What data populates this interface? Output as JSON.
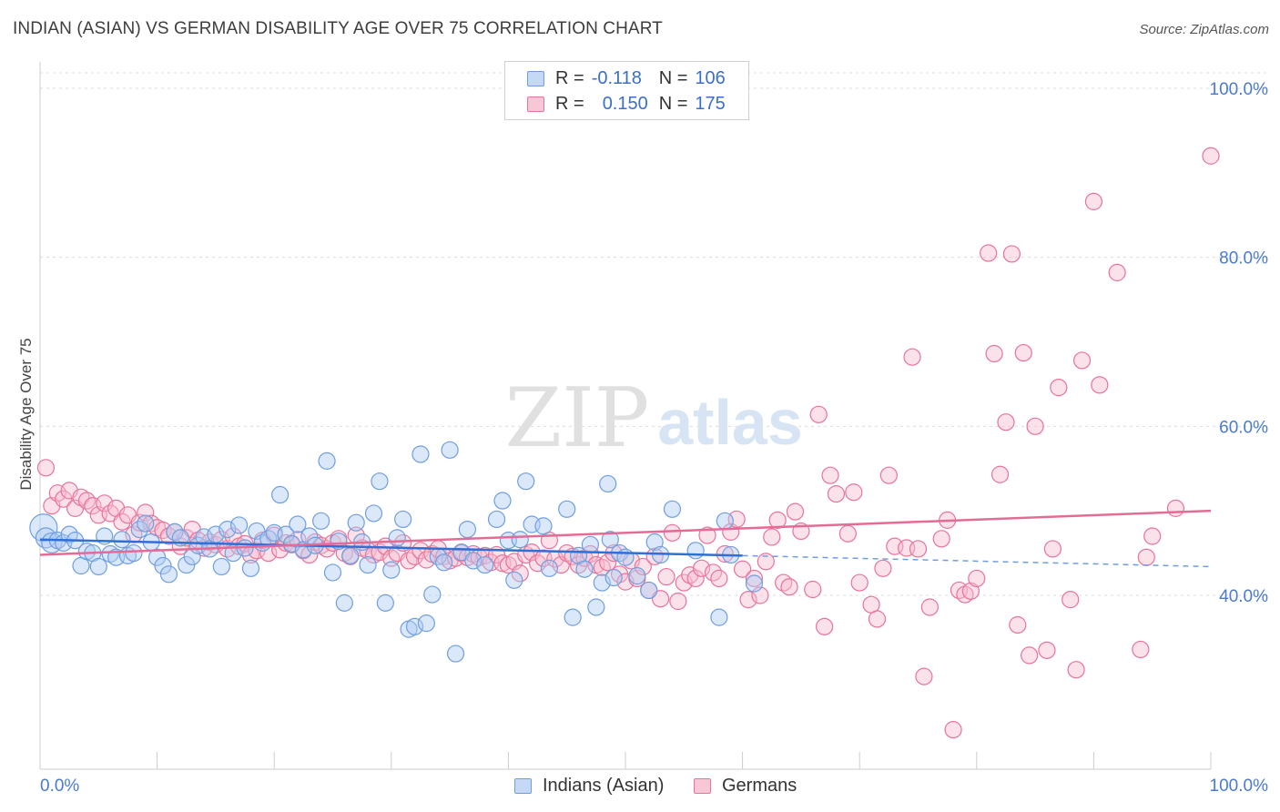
{
  "header": {
    "title": "INDIAN (ASIAN) VS GERMAN DISABILITY AGE OVER 75 CORRELATION CHART",
    "source": "Source: ZipAtlas.com"
  },
  "legend": {
    "r_label": "R =",
    "n_label": "N =",
    "series": [
      {
        "name": "Indians (Asian)",
        "r": "-0.118",
        "n": "106",
        "color": "#6f9ee0",
        "fill": "#c5d9f6"
      },
      {
        "name": "Germans",
        "r": "0.150",
        "n": "175",
        "color": "#e8739b",
        "fill": "#f8c7d6"
      }
    ]
  },
  "watermark": {
    "zip": "ZIP",
    "atlas": "atlas"
  },
  "chart_data": {
    "type": "scatter",
    "title": "INDIAN (ASIAN) VS GERMAN DISABILITY AGE OVER 75 CORRELATION CHART",
    "xlabel": "",
    "ylabel": "Disability Age Over 75",
    "xlim": [
      0,
      100
    ],
    "ylim": [
      20,
      102
    ],
    "x_tick_labels": [
      "0.0%",
      "100.0%"
    ],
    "y_tick_labels": [
      "40.0%",
      "60.0%",
      "80.0%",
      "100.0%"
    ],
    "y_ticks": [
      40,
      60,
      80,
      100
    ],
    "grid": true,
    "legend_position": "top-center",
    "series": [
      {
        "name": "Indians (Asian)",
        "color": "#6f9ee0",
        "trend": {
          "x": [
            0,
            60
          ],
          "y": [
            46.6,
            44.7
          ],
          "dashed_extension_to": [
            100,
            43.4
          ]
        },
        "points": [
          [
            0.3,
            48.0
          ],
          [
            0.5,
            46.8
          ],
          [
            1,
            46.2
          ],
          [
            1.5,
            46.5
          ],
          [
            2,
            46.2
          ],
          [
            2.5,
            47.2
          ],
          [
            3,
            46.5
          ],
          [
            3.5,
            43.5
          ],
          [
            4,
            45.2
          ],
          [
            4.5,
            45.0
          ],
          [
            5,
            43.4
          ],
          [
            5.5,
            47.0
          ],
          [
            6,
            44.9
          ],
          [
            6.5,
            44.5
          ],
          [
            7,
            46.6
          ],
          [
            7.5,
            44.7
          ],
          [
            8,
            45.0
          ],
          [
            8.5,
            47.8
          ],
          [
            9,
            48.5
          ],
          [
            9.5,
            46.3
          ],
          [
            10,
            44.5
          ],
          [
            10.5,
            43.5
          ],
          [
            11,
            42.5
          ],
          [
            11.5,
            47.5
          ],
          [
            12,
            46.8
          ],
          [
            12.5,
            43.6
          ],
          [
            13,
            44.6
          ],
          [
            13.5,
            45.9
          ],
          [
            14,
            46.9
          ],
          [
            14.5,
            45.5
          ],
          [
            15,
            47.2
          ],
          [
            15.5,
            43.4
          ],
          [
            16,
            47.8
          ],
          [
            16.5,
            45.0
          ],
          [
            17,
            48.3
          ],
          [
            17.5,
            45.6
          ],
          [
            18,
            43.2
          ],
          [
            18.5,
            47.6
          ],
          [
            19,
            46.2
          ],
          [
            19.5,
            46.7
          ],
          [
            20,
            47.4
          ],
          [
            20.5,
            51.9
          ],
          [
            21,
            47.2
          ],
          [
            21.5,
            46.1
          ],
          [
            22,
            48.4
          ],
          [
            22.5,
            45.4
          ],
          [
            23,
            47.0
          ],
          [
            23.5,
            45.9
          ],
          [
            24,
            48.8
          ],
          [
            24.5,
            55.9
          ],
          [
            25,
            42.7
          ],
          [
            25.5,
            46.4
          ],
          [
            26,
            39.1
          ],
          [
            26.5,
            44.7
          ],
          [
            27,
            48.6
          ],
          [
            27.5,
            46.3
          ],
          [
            28,
            43.6
          ],
          [
            28.5,
            49.7
          ],
          [
            29,
            53.5
          ],
          [
            29.5,
            39.1
          ],
          [
            30,
            43.0
          ],
          [
            30.5,
            46.8
          ],
          [
            31,
            49.0
          ],
          [
            31.5,
            36.0
          ],
          [
            32,
            36.3
          ],
          [
            32.5,
            56.7
          ],
          [
            33,
            36.7
          ],
          [
            33.5,
            40.1
          ],
          [
            34,
            44.6
          ],
          [
            34.5,
            43.9
          ],
          [
            35,
            57.2
          ],
          [
            35.5,
            33.1
          ],
          [
            36,
            45.1
          ],
          [
            36.5,
            47.8
          ],
          [
            37,
            44.1
          ],
          [
            38,
            43.6
          ],
          [
            39,
            49.0
          ],
          [
            39.5,
            51.2
          ],
          [
            40,
            46.5
          ],
          [
            40.5,
            41.8
          ],
          [
            41,
            46.6
          ],
          [
            41.5,
            53.5
          ],
          [
            42,
            48.4
          ],
          [
            43,
            48.2
          ],
          [
            43.5,
            43.2
          ],
          [
            45,
            50.2
          ],
          [
            45.5,
            37.4
          ],
          [
            46,
            44.7
          ],
          [
            46.5,
            43.1
          ],
          [
            47,
            46.0
          ],
          [
            47.5,
            38.6
          ],
          [
            48,
            41.5
          ],
          [
            48.5,
            53.2
          ],
          [
            48.7,
            46.6
          ],
          [
            49,
            42.1
          ],
          [
            49.5,
            45.0
          ],
          [
            50,
            44.5
          ],
          [
            51,
            42.3
          ],
          [
            52,
            40.6
          ],
          [
            52.5,
            46.3
          ],
          [
            53,
            44.8
          ],
          [
            54,
            50.2
          ],
          [
            58,
            37.4
          ],
          [
            56,
            45.3
          ],
          [
            58.5,
            48.8
          ],
          [
            59,
            44.8
          ],
          [
            61,
            41.4
          ]
        ]
      },
      {
        "name": "Germans",
        "color": "#e8739b",
        "trend": {
          "x": [
            0,
            100
          ],
          "y": [
            44.8,
            50.0
          ]
        },
        "points": [
          [
            0.5,
            55.1
          ],
          [
            1,
            50.6
          ],
          [
            1.5,
            52.1
          ],
          [
            2,
            51.4
          ],
          [
            2.5,
            52.4
          ],
          [
            3,
            50.3
          ],
          [
            3.5,
            51.6
          ],
          [
            4,
            51.2
          ],
          [
            4.5,
            50.6
          ],
          [
            5,
            49.5
          ],
          [
            5.5,
            50.9
          ],
          [
            6,
            49.7
          ],
          [
            6.5,
            50.3
          ],
          [
            7,
            48.7
          ],
          [
            7.5,
            49.5
          ],
          [
            8,
            47.2
          ],
          [
            8.5,
            48.6
          ],
          [
            9,
            49.8
          ],
          [
            9.5,
            48.5
          ],
          [
            10,
            48.0
          ],
          [
            10.5,
            47.7
          ],
          [
            11,
            47.0
          ],
          [
            11.5,
            47.5
          ],
          [
            12,
            45.8
          ],
          [
            12.5,
            46.8
          ],
          [
            13,
            47.8
          ],
          [
            13.5,
            46.5
          ],
          [
            14,
            45.6
          ],
          [
            14.5,
            46.3
          ],
          [
            15,
            46.0
          ],
          [
            15.5,
            46.6
          ],
          [
            16,
            45.5
          ],
          [
            16.5,
            47.0
          ],
          [
            17,
            45.8
          ],
          [
            17.5,
            46.1
          ],
          [
            18,
            44.8
          ],
          [
            18.5,
            45.3
          ],
          [
            19,
            46.5
          ],
          [
            19.5,
            45.0
          ],
          [
            20,
            47.1
          ],
          [
            20.5,
            45.4
          ],
          [
            21,
            46.2
          ],
          [
            21.5,
            46.0
          ],
          [
            22,
            46.6
          ],
          [
            22.5,
            45.3
          ],
          [
            23,
            44.8
          ],
          [
            23.5,
            46.3
          ],
          [
            24,
            45.9
          ],
          [
            24.5,
            45.5
          ],
          [
            25,
            46.2
          ],
          [
            25.5,
            46.7
          ],
          [
            26,
            45.0
          ],
          [
            26.5,
            44.6
          ],
          [
            27,
            47.1
          ],
          [
            27.5,
            45.6
          ],
          [
            28,
            45.3
          ],
          [
            28.5,
            44.8
          ],
          [
            29,
            45.1
          ],
          [
            29.5,
            45.8
          ],
          [
            30,
            44.4
          ],
          [
            30.5,
            45.0
          ],
          [
            31,
            46.2
          ],
          [
            31.5,
            44.1
          ],
          [
            32,
            44.6
          ],
          [
            32.5,
            45.3
          ],
          [
            33,
            44.2
          ],
          [
            33.5,
            44.9
          ],
          [
            34,
            45.5
          ],
          [
            34.5,
            44.6
          ],
          [
            35,
            44.1
          ],
          [
            35.5,
            44.4
          ],
          [
            36,
            45.0
          ],
          [
            36.5,
            44.5
          ],
          [
            37,
            44.9
          ],
          [
            37.5,
            44.5
          ],
          [
            38,
            44.7
          ],
          [
            38.5,
            43.9
          ],
          [
            39,
            44.8
          ],
          [
            39.5,
            43.8
          ],
          [
            40,
            43.6
          ],
          [
            40.5,
            44.0
          ],
          [
            41,
            42.6
          ],
          [
            41.5,
            44.8
          ],
          [
            42,
            45.1
          ],
          [
            42.5,
            43.8
          ],
          [
            43,
            44.4
          ],
          [
            43.5,
            46.5
          ],
          [
            44,
            44.3
          ],
          [
            44.5,
            43.6
          ],
          [
            45,
            45.0
          ],
          [
            45.5,
            44.6
          ],
          [
            46,
            43.6
          ],
          [
            46.5,
            44.4
          ],
          [
            47,
            44.9
          ],
          [
            47.5,
            43.6
          ],
          [
            48,
            43.3
          ],
          [
            48.5,
            43.9
          ],
          [
            49,
            45.0
          ],
          [
            49.5,
            42.5
          ],
          [
            50,
            41.6
          ],
          [
            50.5,
            44.1
          ],
          [
            51,
            42.0
          ],
          [
            51.5,
            43.4
          ],
          [
            52,
            40.6
          ],
          [
            52.5,
            44.6
          ],
          [
            53,
            39.6
          ],
          [
            53.5,
            42.2
          ],
          [
            54,
            47.4
          ],
          [
            54.5,
            39.3
          ],
          [
            55,
            41.5
          ],
          [
            55.5,
            42.4
          ],
          [
            56,
            42.0
          ],
          [
            56.5,
            43.2
          ],
          [
            57,
            47.1
          ],
          [
            57.5,
            42.7
          ],
          [
            58,
            42.0
          ],
          [
            58.5,
            44.9
          ],
          [
            59,
            47.5
          ],
          [
            59.5,
            49.0
          ],
          [
            60,
            43.1
          ],
          [
            60.5,
            39.5
          ],
          [
            61,
            42.0
          ],
          [
            61.5,
            40.0
          ],
          [
            62,
            44.0
          ],
          [
            62.5,
            46.9
          ],
          [
            63,
            48.9
          ],
          [
            63.5,
            41.5
          ],
          [
            64,
            41.0
          ],
          [
            64.5,
            49.9
          ],
          [
            65,
            47.6
          ],
          [
            66,
            40.7
          ],
          [
            66.5,
            61.4
          ],
          [
            67,
            36.3
          ],
          [
            67.5,
            54.2
          ],
          [
            68,
            52.0
          ],
          [
            69,
            47.3
          ],
          [
            69.5,
            52.2
          ],
          [
            70,
            41.5
          ],
          [
            71,
            38.9
          ],
          [
            71.5,
            37.2
          ],
          [
            72,
            43.2
          ],
          [
            72.5,
            54.2
          ],
          [
            73,
            45.8
          ],
          [
            74,
            45.6
          ],
          [
            74.5,
            68.2
          ],
          [
            75,
            45.5
          ],
          [
            75.5,
            30.4
          ],
          [
            76,
            38.6
          ],
          [
            77,
            46.7
          ],
          [
            77.5,
            48.9
          ],
          [
            78,
            24.1
          ],
          [
            78.5,
            40.6
          ],
          [
            79,
            40.1
          ],
          [
            79.5,
            40.5
          ],
          [
            80,
            42.0
          ],
          [
            81,
            80.5
          ],
          [
            81.5,
            68.6
          ],
          [
            82,
            54.3
          ],
          [
            82.5,
            60.5
          ],
          [
            83,
            80.4
          ],
          [
            83.5,
            36.5
          ],
          [
            84,
            68.7
          ],
          [
            84.5,
            32.9
          ],
          [
            85,
            60.0
          ],
          [
            86,
            33.5
          ],
          [
            86.5,
            45.5
          ],
          [
            87,
            64.6
          ],
          [
            88,
            39.5
          ],
          [
            88.5,
            31.2
          ],
          [
            89,
            67.8
          ],
          [
            90,
            86.6
          ],
          [
            90.5,
            64.9
          ],
          [
            92,
            78.2
          ],
          [
            94,
            33.6
          ],
          [
            94.5,
            44.5
          ],
          [
            95,
            47.0
          ],
          [
            97,
            50.3
          ],
          [
            100,
            92.0
          ]
        ]
      }
    ]
  }
}
